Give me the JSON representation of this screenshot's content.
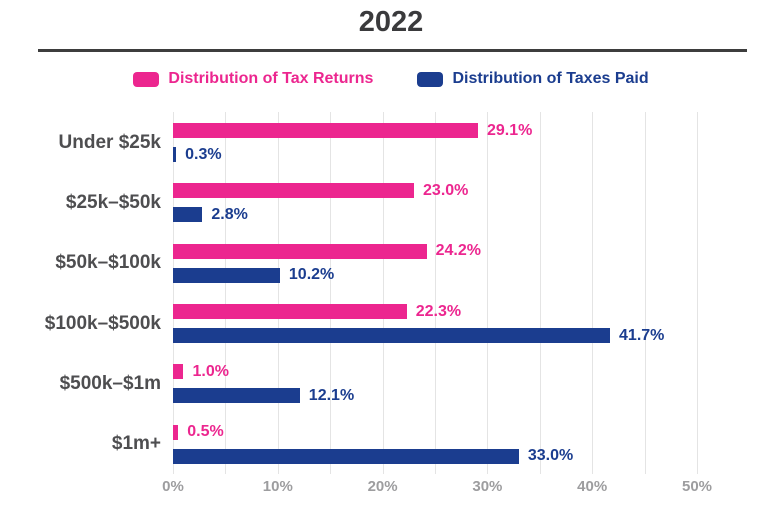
{
  "header": {
    "title": "2022"
  },
  "legend": {
    "items": [
      {
        "label": "Distribution of Tax Returns",
        "color": "#ec268f"
      },
      {
        "label": "Distribution of Taxes Paid",
        "color": "#1b3d8f"
      }
    ]
  },
  "colors": {
    "pink": "#ec268f",
    "navy": "#1b3d8f",
    "title_text": "#3a3a3c",
    "category_text": "#4e4e50",
    "axis_text": "#9d9d9f",
    "gridline": "#e4e4e4",
    "rule": "#3d3d3d"
  },
  "chart_data": {
    "type": "bar",
    "orientation": "horizontal",
    "title": "2022",
    "categories": [
      "Under $25k",
      "$25k–$50k",
      "$50k–$100k",
      "$100k–$500k",
      "$500k–$1m",
      "$1m+"
    ],
    "series": [
      {
        "name": "Distribution of Tax Returns",
        "color": "#ec268f",
        "values": [
          29.1,
          23.0,
          24.2,
          22.3,
          1.0,
          0.5
        ]
      },
      {
        "name": "Distribution of Taxes Paid",
        "color": "#1b3d8f",
        "values": [
          0.3,
          2.8,
          10.2,
          41.7,
          12.1,
          33.0
        ]
      }
    ],
    "value_label_suffix": "%",
    "value_label_decimals": 1,
    "xlim": [
      0,
      50
    ],
    "x_grid_step": 5,
    "x_tick_labels": [
      "0%",
      "10%",
      "20%",
      "30%",
      "40%",
      "50%"
    ],
    "x_tick_step": 10,
    "grid": true,
    "legend_position": "top"
  }
}
